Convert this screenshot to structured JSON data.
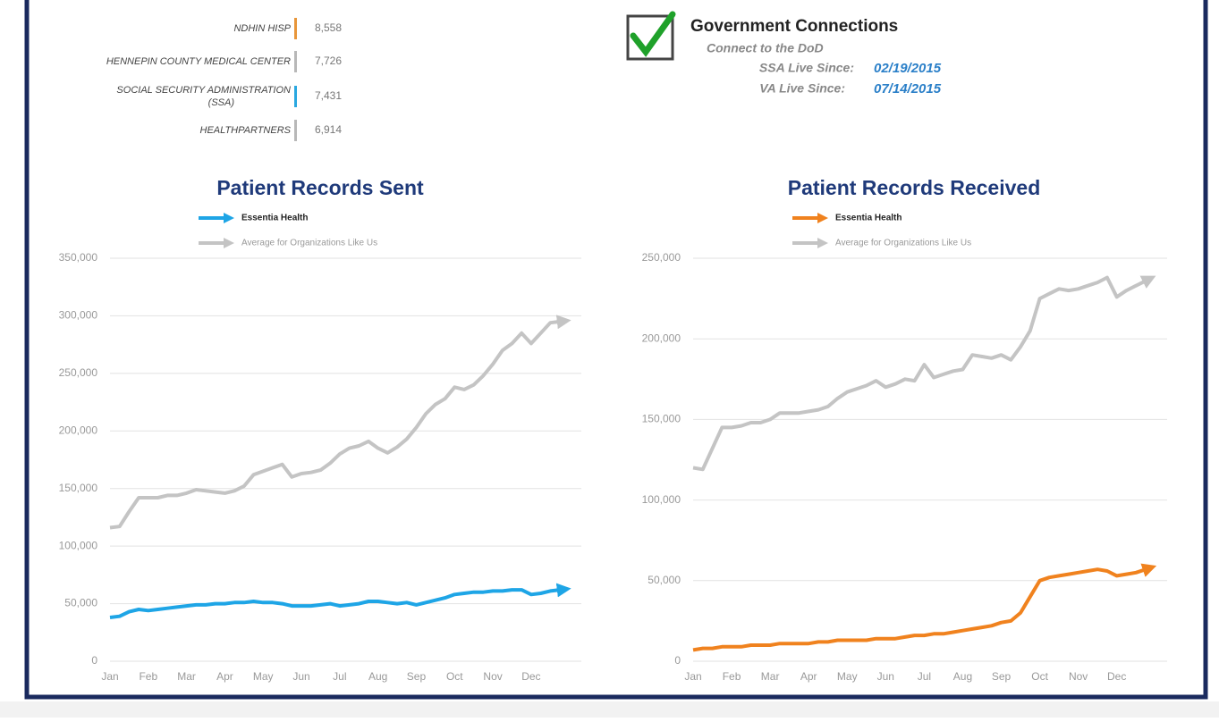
{
  "top_list": [
    {
      "name": "NDHIN HISP",
      "value": "8,558",
      "color": "#e8963a"
    },
    {
      "name": "HENNEPIN COUNTY MEDICAL CENTER",
      "value": "7,726",
      "color": "#b8b8b8"
    },
    {
      "name": "SOCIAL SECURITY ADMINISTRATION (SSA)",
      "value": "7,431",
      "color": "#2aa8e0"
    },
    {
      "name": "HEALTHPARTNERS",
      "value": "6,914",
      "color": "#b8b8b8"
    }
  ],
  "government": {
    "title": "Government Connections",
    "subtitle": "Connect to the DoD",
    "fields": [
      {
        "label": "SSA Live Since:",
        "value": "02/19/2015"
      },
      {
        "label": "VA Live Since:",
        "value": "07/14/2015"
      }
    ]
  },
  "chart_data": [
    {
      "type": "line",
      "title": "Patient Records Sent",
      "categories": [
        "Jan",
        null,
        null,
        null,
        "Feb",
        null,
        null,
        null,
        "Mar",
        null,
        null,
        null,
        "Apr",
        null,
        null,
        null,
        "May",
        null,
        null,
        null,
        "Jun",
        null,
        null,
        null,
        "Jul",
        null,
        null,
        null,
        "Aug",
        null,
        null,
        null,
        "Sep",
        null,
        null,
        null,
        "Oct",
        null,
        null,
        null,
        "Nov",
        null,
        null,
        null,
        "Dec",
        null,
        null,
        null
      ],
      "series": [
        {
          "name": "Essentia Health",
          "color": "#1ea5e6",
          "values": [
            38000,
            39000,
            43000,
            45000,
            44000,
            45000,
            46000,
            47000,
            48000,
            49000,
            49000,
            50000,
            50000,
            51000,
            51000,
            52000,
            51000,
            51000,
            50000,
            48000,
            48000,
            48000,
            49000,
            50000,
            48000,
            49000,
            50000,
            52000,
            52000,
            51000,
            50000,
            51000,
            49000,
            51000,
            53000,
            55000,
            58000,
            59000,
            60000,
            60000,
            61000,
            61000,
            62000,
            62000,
            58000,
            59000,
            61000,
            62000
          ]
        },
        {
          "name": "Average for Organizations Like Us",
          "color": "#c4c4c4",
          "values": [
            116000,
            117000,
            130000,
            142000,
            142000,
            142000,
            144000,
            144000,
            146000,
            149000,
            148000,
            147000,
            146000,
            148000,
            152000,
            162000,
            165000,
            168000,
            171000,
            160000,
            163000,
            164000,
            166000,
            172000,
            180000,
            185000,
            187000,
            191000,
            185000,
            181000,
            186000,
            193000,
            203000,
            215000,
            223000,
            228000,
            238000,
            236000,
            240000,
            248000,
            258000,
            270000,
            276000,
            285000,
            276000,
            285000,
            294000,
            295000
          ]
        }
      ],
      "ylim": [
        0,
        350000
      ],
      "yticks": [
        0,
        {
          "value": 50000,
          "label": "50,000"
        },
        {
          "value": 100000,
          "label": "100,000"
        },
        {
          "value": 150000,
          "label": "150,000"
        },
        {
          "value": 200000,
          "label": "200,000"
        },
        {
          "value": 250000,
          "label": "250,000"
        },
        {
          "value": 300000,
          "label": "300,000"
        },
        {
          "value": 350000,
          "label": "350,000"
        }
      ],
      "grid": true
    },
    {
      "type": "line",
      "title": "Patient Records Received",
      "categories": [
        "Jan",
        null,
        null,
        null,
        "Feb",
        null,
        null,
        null,
        "Mar",
        null,
        null,
        null,
        "Apr",
        null,
        null,
        null,
        "May",
        null,
        null,
        null,
        "Jun",
        null,
        null,
        null,
        "Jul",
        null,
        null,
        null,
        "Aug",
        null,
        null,
        null,
        "Sep",
        null,
        null,
        null,
        "Oct",
        null,
        null,
        null,
        "Nov",
        null,
        null,
        null,
        "Dec",
        null,
        null,
        null
      ],
      "series": [
        {
          "name": "Essentia Health",
          "color": "#f0821e",
          "values": [
            7000,
            8000,
            8000,
            9000,
            9000,
            9000,
            10000,
            10000,
            10000,
            11000,
            11000,
            11000,
            11000,
            12000,
            12000,
            13000,
            13000,
            13000,
            13000,
            14000,
            14000,
            14000,
            15000,
            16000,
            16000,
            17000,
            17000,
            18000,
            19000,
            20000,
            21000,
            22000,
            24000,
            25000,
            30000,
            40000,
            50000,
            52000,
            53000,
            54000,
            55000,
            56000,
            57000,
            56000,
            53000,
            54000,
            55000,
            57000
          ]
        },
        {
          "name": "Average for Organizations Like Us",
          "color": "#c4c4c4",
          "values": [
            120000,
            119000,
            132000,
            145000,
            145000,
            146000,
            148000,
            148000,
            150000,
            154000,
            154000,
            154000,
            155000,
            156000,
            158000,
            163000,
            167000,
            169000,
            171000,
            174000,
            170000,
            172000,
            175000,
            174000,
            184000,
            176000,
            178000,
            180000,
            181000,
            190000,
            189000,
            188000,
            190000,
            187000,
            195000,
            205000,
            225000,
            228000,
            231000,
            230000,
            231000,
            233000,
            235000,
            238000,
            226000,
            230000,
            233000,
            236000
          ]
        }
      ],
      "ylim": [
        0,
        250000
      ],
      "yticks": [
        0,
        {
          "value": 50000,
          "label": "50,000"
        },
        {
          "value": 100000,
          "label": "100,000"
        },
        {
          "value": 150000,
          "label": "150,000"
        },
        {
          "value": 200000,
          "label": "200,000"
        },
        {
          "value": 250000,
          "label": "250,000"
        }
      ],
      "grid": true
    }
  ]
}
